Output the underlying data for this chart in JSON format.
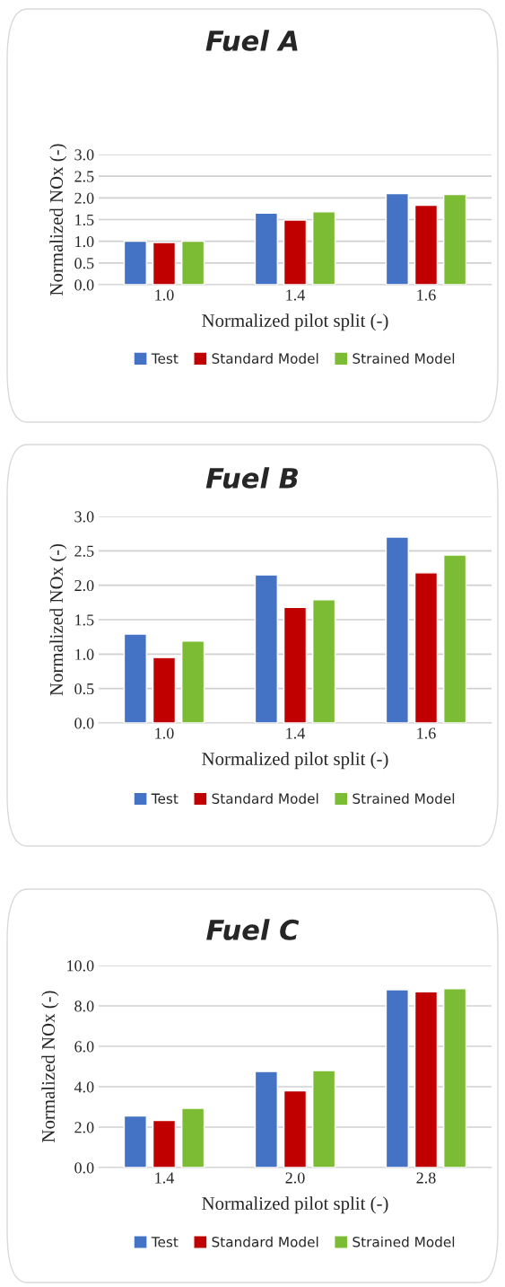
{
  "chart_data": [
    {
      "type": "bar",
      "title": "Fuel A",
      "xlabel": "Normalized pilot split (-)",
      "ylabel": "Normalized NOx (-)",
      "categories": [
        "1.0",
        "1.4",
        "1.6"
      ],
      "ylim": [
        0,
        3
      ],
      "yticks": [
        {
          "value": 0,
          "label": "0.0"
        },
        {
          "value": 0.5,
          "label": "0.5"
        },
        {
          "value": 1,
          "label": "1.0"
        },
        {
          "value": 1.5,
          "label": "1.5"
        },
        {
          "value": 2,
          "label": "2.0"
        },
        {
          "value": 2.5,
          "label": "2.5"
        },
        {
          "value": 3,
          "label": "3.0"
        }
      ],
      "grid": "y",
      "legend": "bottom",
      "series": [
        {
          "name": "Test",
          "color": "#4472c4",
          "values": [
            1.0,
            1.65,
            2.1
          ]
        },
        {
          "name": "Standard Model",
          "color": "#c00000",
          "values": [
            0.97,
            1.49,
            1.83
          ]
        },
        {
          "name": "Strained Model",
          "color": "#7cbb34",
          "values": [
            1.0,
            1.68,
            2.08
          ]
        }
      ]
    },
    {
      "type": "bar",
      "title": "Fuel B",
      "xlabel": "Normalized pilot split (-)",
      "ylabel": "Normalized NOx (-)",
      "categories": [
        "1.0",
        "1.4",
        "1.6"
      ],
      "ylim": [
        0,
        3
      ],
      "yticks": [
        {
          "value": 0,
          "label": "0.0"
        },
        {
          "value": 0.5,
          "label": "0.5"
        },
        {
          "value": 1,
          "label": "1.0"
        },
        {
          "value": 1.5,
          "label": "1.5"
        },
        {
          "value": 2,
          "label": "2.0"
        },
        {
          "value": 2.5,
          "label": "2.5"
        },
        {
          "value": 3,
          "label": "3.0"
        }
      ],
      "grid": "y",
      "legend": "bottom",
      "series": [
        {
          "name": "Test",
          "color": "#4472c4",
          "values": [
            1.29,
            2.15,
            2.7
          ]
        },
        {
          "name": "Standard Model",
          "color": "#c00000",
          "values": [
            0.95,
            1.68,
            2.18
          ]
        },
        {
          "name": "Strained Model",
          "color": "#7cbb34",
          "values": [
            1.19,
            1.79,
            2.44
          ]
        }
      ]
    },
    {
      "type": "bar",
      "title": "Fuel C",
      "xlabel": "Normalized pilot split (-)",
      "ylabel": "Normalized NOx (-)",
      "categories": [
        "1.4",
        "2.0",
        "2.8"
      ],
      "ylim": [
        0,
        10
      ],
      "yticks": [
        {
          "value": 0,
          "label": "0.0"
        },
        {
          "value": 2,
          "label": "2.0"
        },
        {
          "value": 4,
          "label": "4.0"
        },
        {
          "value": 6,
          "label": "6.0"
        },
        {
          "value": 8,
          "label": "8.0"
        },
        {
          "value": 10,
          "label": "10.0"
        }
      ],
      "grid": "y",
      "legend": "bottom",
      "series": [
        {
          "name": "Test",
          "color": "#4472c4",
          "values": [
            2.55,
            4.75,
            8.8
          ]
        },
        {
          "name": "Standard Model",
          "color": "#c00000",
          "values": [
            2.33,
            3.8,
            8.7
          ]
        },
        {
          "name": "Strained Model",
          "color": "#7cbb34",
          "values": [
            2.93,
            4.8,
            8.85
          ]
        }
      ]
    }
  ]
}
